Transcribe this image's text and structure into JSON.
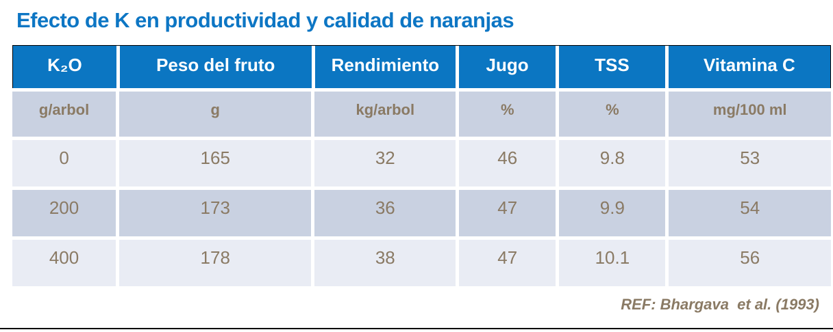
{
  "page": {
    "title": "Efecto de K en productividad y calidad de naranjas",
    "reference": "REF: Bhargava  et al. (1993)"
  },
  "colors": {
    "title_blue": "#0D76C4",
    "header_bg": "#0B76C2",
    "header_text": "#FFFFFF",
    "units_row_bg": "#C9D1E1",
    "row_light_bg": "#E9ECF4",
    "row_dark_bg": "#C9D1E1",
    "body_text": "#8A7A64",
    "header_outline": "#000000",
    "cell_gap": "#FFFFFF"
  },
  "chart_data": {
    "type": "table",
    "title": "Efecto de K en productividad y calidad de naranjas",
    "columns": [
      "K₂O",
      "Peso del fruto",
      "Rendimiento",
      "Jugo",
      "TSS",
      "Vitamina C"
    ],
    "units": [
      "g/arbol",
      "g",
      "kg/arbol",
      "%",
      "%",
      "mg/100 ml"
    ],
    "rows": [
      [
        "0",
        "165",
        "32",
        "46",
        "9.8",
        "53"
      ],
      [
        "200",
        "173",
        "36",
        "47",
        "9.9",
        "54"
      ],
      [
        "400",
        "178",
        "38",
        "47",
        "10.1",
        "56"
      ]
    ],
    "source": "REF: Bhargava et al. (1993)"
  }
}
